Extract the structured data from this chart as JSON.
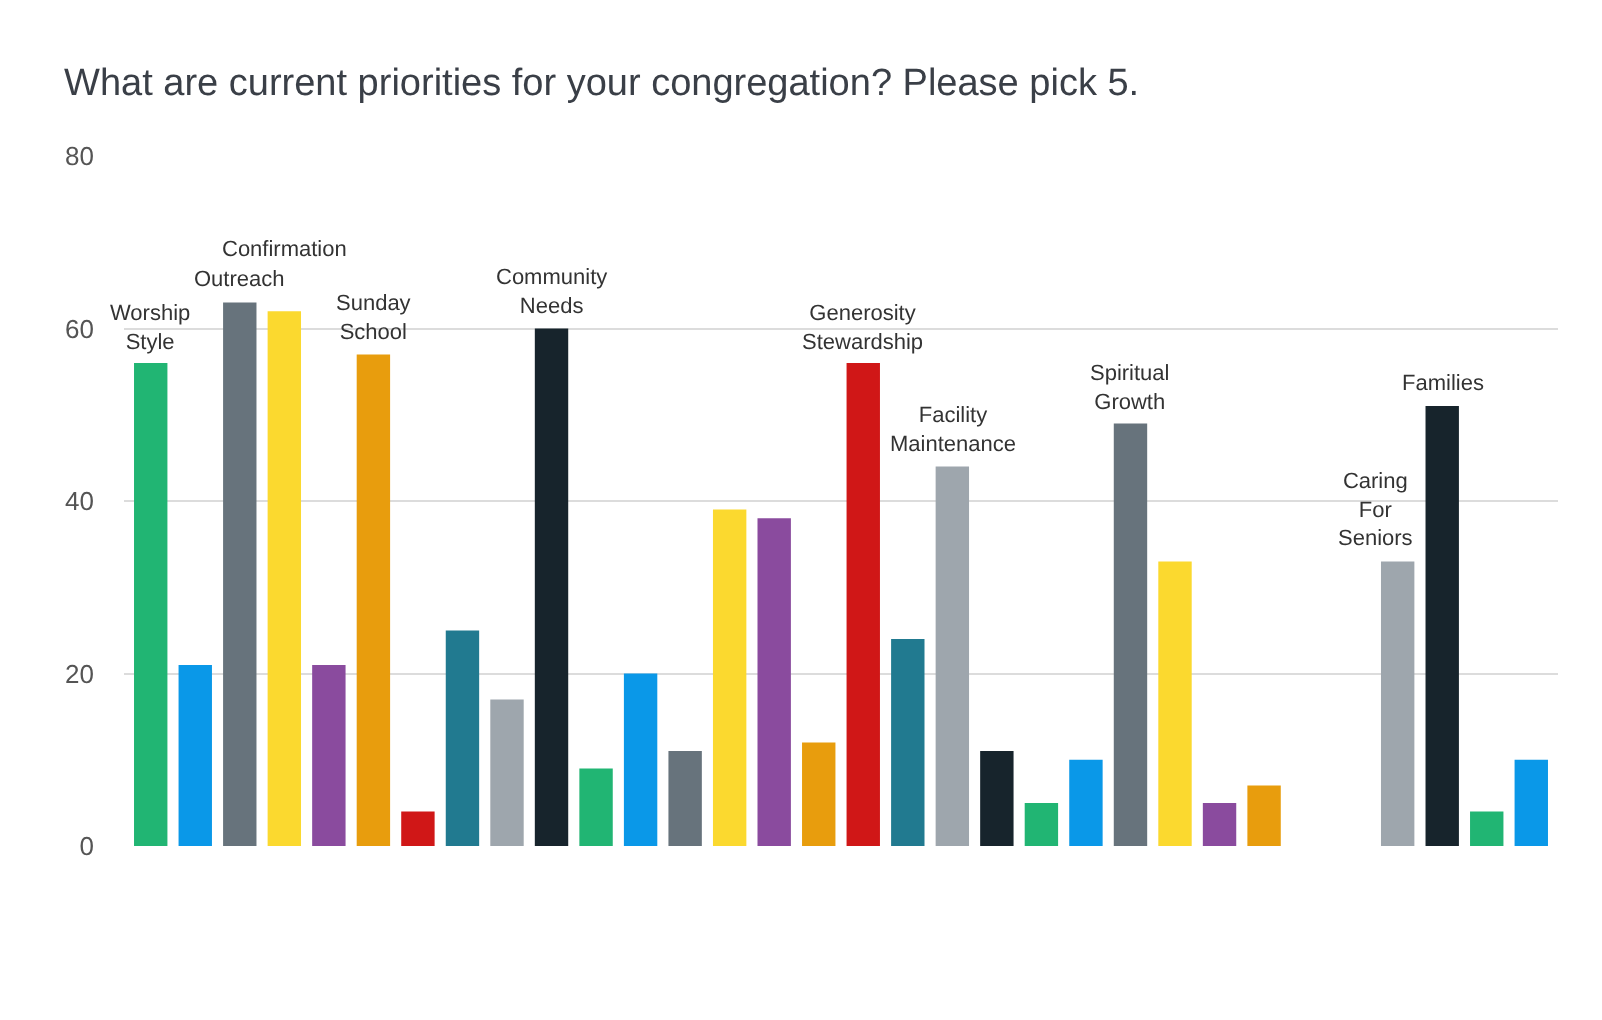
{
  "chart_data": {
    "type": "bar",
    "title": "What are current priorities for your congregation? Please pick 5.",
    "categories": [
      "Worship\nStyle",
      null,
      "Outreach",
      "Confirmation",
      null,
      "Sunday\nSchool",
      null,
      null,
      null,
      "Community\nNeeds",
      null,
      null,
      null,
      null,
      null,
      null,
      "Generosity\nStewardship",
      null,
      "Facility\nMaintenance",
      null,
      null,
      null,
      "Spiritual\nGrowth",
      null,
      null,
      null,
      null,
      null,
      "Caring\nFor\nSeniors",
      "Families",
      null,
      null
    ],
    "values": [
      56,
      21,
      63,
      62,
      21,
      57,
      4,
      25,
      17,
      60,
      9,
      20,
      11,
      39,
      38,
      12,
      56,
      24,
      44,
      11,
      5,
      10,
      49,
      33,
      5,
      7,
      null,
      null,
      33,
      51,
      4,
      10
    ],
    "colors": [
      "#21b573",
      "#0a98e8",
      "#67737c",
      "#fbd92f",
      "#8a4b9e",
      "#e89d0d",
      "#d01717",
      "#217a90",
      "#9ea6ad",
      "#17242c",
      "#21b573",
      "#0a98e8",
      "#67737c",
      "#fbd92f",
      "#8a4b9e",
      "#e89d0d",
      "#d01717",
      "#217a90",
      "#9ea6ad",
      "#17242c",
      "#21b573",
      "#0a98e8",
      "#67737c",
      "#fbd92f",
      "#8a4b9e",
      "#e89d0d",
      "#d01717",
      "#217a90",
      "#9ea6ad",
      "#17242c",
      "#21b573",
      "#0a98e8"
    ],
    "ylim": [
      0,
      80
    ],
    "yticks": [
      0,
      20,
      40,
      60,
      80
    ],
    "grid": "y",
    "legend": false
  }
}
